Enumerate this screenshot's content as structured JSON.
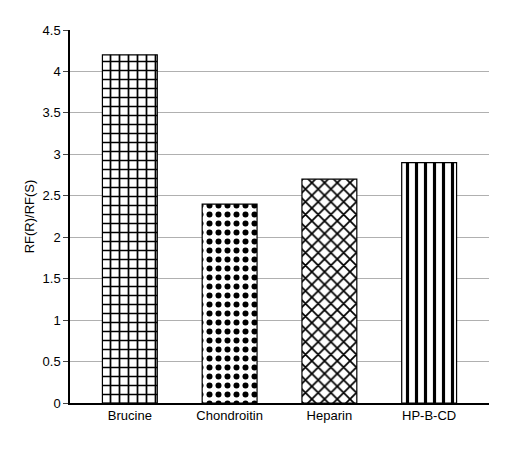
{
  "chart_data": {
    "type": "bar",
    "y_label": "RF(R)/RF(S)",
    "categories": [
      "Brucine",
      "Chondroitin",
      "Heparin",
      "HP-B-CD"
    ],
    "values": [
      4.2,
      2.4,
      2.7,
      2.9
    ],
    "color": "#ffffff",
    "ylim": [
      0,
      4.5
    ],
    "yticks": [
      0,
      0.5,
      1,
      1.5,
      2,
      2.5,
      3,
      3.5,
      4,
      4.5
    ],
    "grid": true
  }
}
